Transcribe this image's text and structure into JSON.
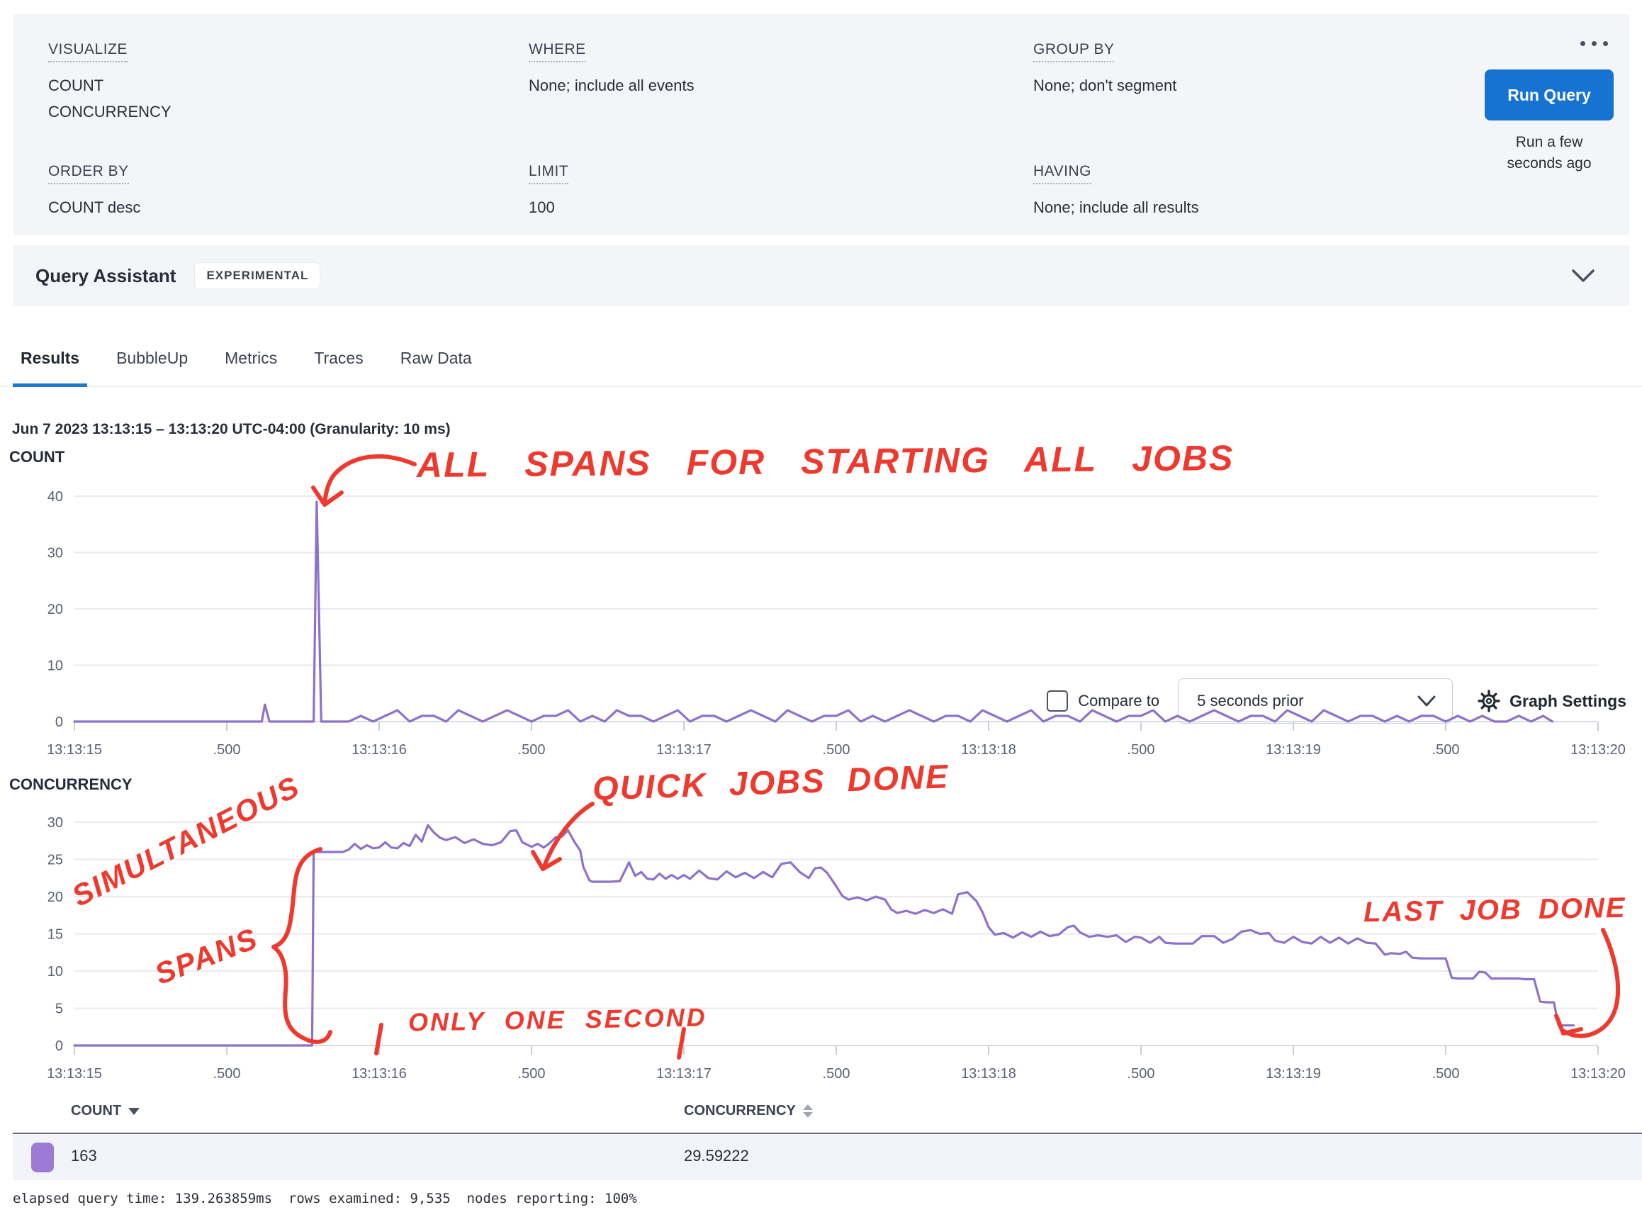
{
  "colors": {
    "accent_blue": "#1673d1",
    "series_purple": "#8d72c9",
    "annotation_red": "#ee392e",
    "tab_underline": "#1b79d2"
  },
  "query_builder": {
    "visualize": {
      "label": "VISUALIZE",
      "values": [
        "COUNT",
        "CONCURRENCY"
      ]
    },
    "where": {
      "label": "WHERE",
      "value": "None; include all events"
    },
    "group_by": {
      "label": "GROUP BY",
      "value": "None; don't segment"
    },
    "order_by": {
      "label": "ORDER BY",
      "value": "COUNT desc"
    },
    "limit": {
      "label": "LIMIT",
      "value": "100"
    },
    "having": {
      "label": "HAVING",
      "value": "None; include all results"
    },
    "run_query_label": "Run Query",
    "last_run_text": "Run a few seconds ago"
  },
  "query_assistant": {
    "title": "Query Assistant",
    "badge": "EXPERIMENTAL"
  },
  "tabs": {
    "items": [
      {
        "label": "Results",
        "active": true
      },
      {
        "label": "BubbleUp",
        "active": false
      },
      {
        "label": "Metrics",
        "active": false
      },
      {
        "label": "Traces",
        "active": false
      },
      {
        "label": "Raw Data",
        "active": false
      }
    ]
  },
  "toolbar": {
    "compare_checkbox_label": "Compare to",
    "compare_select_value": "5 seconds prior",
    "graph_settings_label": "Graph Settings"
  },
  "time_header": "Jun 7 2023 13:13:15 – 13:13:20 UTC-04:00 (Granularity: 10 ms)",
  "annotations": {
    "count_arrow_text": "ALL SPANS FOR STARTING ALL JOBS",
    "quick_jobs": "QUICK JOBS DONE",
    "simultaneous_line1": "SIMULTANEOUS",
    "simultaneous_line2": "SPANS",
    "only_one_second": "ONLY ONE SECOND",
    "last_job": "LAST JOB DONE"
  },
  "chart_data": [
    {
      "type": "line",
      "title": "COUNT",
      "color": "#8d72c9",
      "ylim": [
        0,
        40
      ],
      "yticks": [
        40,
        30,
        20,
        10,
        0
      ],
      "xlim": [
        0,
        5
      ],
      "grid": true,
      "xticks": [
        {
          "x": 0,
          "label": "13:13:15"
        },
        {
          "x": 0.5,
          "label": ".500"
        },
        {
          "x": 1,
          "label": "13:13:16"
        },
        {
          "x": 1.5,
          "label": ".500"
        },
        {
          "x": 2,
          "label": "13:13:17"
        },
        {
          "x": 2.5,
          "label": ".500"
        },
        {
          "x": 3,
          "label": "13:13:18"
        },
        {
          "x": 3.5,
          "label": ".500"
        },
        {
          "x": 4,
          "label": "13:13:19"
        },
        {
          "x": 4.5,
          "label": ".500"
        },
        {
          "x": 5,
          "label": "13:13:20"
        }
      ],
      "segments": [
        {
          "points": [
            [
              0,
              0
            ],
            [
              0.6,
              0
            ],
            [
              0.615,
              0
            ],
            [
              0.625,
              3
            ],
            [
              0.64,
              0
            ],
            [
              0.785,
              0
            ],
            [
              0.795,
              39
            ],
            [
              0.81,
              0
            ],
            [
              0.9,
              0
            ]
          ]
        },
        {
          "x0": 0.94,
          "dx": 0.04,
          "values": [
            1,
            0,
            1,
            2,
            0,
            1,
            1,
            0,
            2,
            1,
            0,
            1,
            2,
            1,
            0,
            1,
            1,
            2,
            0,
            1,
            0,
            2,
            1,
            1,
            0,
            1,
            2,
            0,
            1,
            1,
            0,
            1,
            2,
            1,
            0,
            2,
            1,
            0,
            1,
            1,
            2,
            0,
            1,
            0,
            1,
            2,
            1,
            0,
            1,
            1,
            0,
            2,
            1,
            0,
            1,
            2,
            0,
            1,
            1,
            0,
            2,
            1,
            0,
            1,
            1,
            2,
            0,
            1,
            0,
            1,
            2,
            1,
            0,
            1,
            1,
            0,
            2,
            1,
            0,
            2,
            1,
            0,
            1,
            1,
            0,
            1,
            0,
            1,
            1,
            0,
            1,
            0,
            1,
            0,
            0,
            1,
            0,
            1
          ]
        },
        {
          "points": [
            [
              4.85,
              0
            ]
          ]
        }
      ]
    },
    {
      "type": "line",
      "title": "CONCURRENCY",
      "color": "#8d72c9",
      "ylim": [
        0,
        30
      ],
      "yticks": [
        30,
        25,
        20,
        15,
        10,
        5,
        0
      ],
      "xlim": [
        0,
        5
      ],
      "grid": true,
      "xticks": [
        {
          "x": 0,
          "label": "13:13:15"
        },
        {
          "x": 0.5,
          "label": ".500"
        },
        {
          "x": 1,
          "label": "13:13:16"
        },
        {
          "x": 1.5,
          "label": ".500"
        },
        {
          "x": 2,
          "label": "13:13:17"
        },
        {
          "x": 2.5,
          "label": ".500"
        },
        {
          "x": 3,
          "label": "13:13:18"
        },
        {
          "x": 3.5,
          "label": ".500"
        },
        {
          "x": 4,
          "label": "13:13:19"
        },
        {
          "x": 4.5,
          "label": ".500"
        },
        {
          "x": 5,
          "label": "13:13:20"
        }
      ],
      "segments": [
        {
          "points": [
            [
              0,
              0
            ],
            [
              0.78,
              0
            ],
            [
              0.785,
              26
            ],
            [
              0.8,
              26
            ],
            [
              0.84,
              26
            ],
            [
              0.88,
              26
            ],
            [
              0.9,
              26.3
            ],
            [
              0.92,
              27.1
            ],
            [
              0.94,
              26.4
            ],
            [
              0.96,
              26.9
            ],
            [
              0.98,
              26.5
            ],
            [
              1,
              26.6
            ],
            [
              1.02,
              27.3
            ],
            [
              1.04,
              26.6
            ],
            [
              1.06,
              26.5
            ],
            [
              1.08,
              27.2
            ],
            [
              1.1,
              26.8
            ],
            [
              1.12,
              28.3
            ],
            [
              1.14,
              27.4
            ],
            [
              1.16,
              29.6
            ],
            [
              1.18,
              28.6
            ],
            [
              1.2,
              27.9
            ],
            [
              1.22,
              27.6
            ],
            [
              1.25,
              28
            ],
            [
              1.28,
              27.2
            ],
            [
              1.31,
              27.7
            ],
            [
              1.34,
              27.1
            ],
            [
              1.37,
              26.9
            ],
            [
              1.4,
              27.3
            ],
            [
              1.43,
              28.8
            ],
            [
              1.45,
              28.9
            ],
            [
              1.47,
              27.3
            ],
            [
              1.5,
              26.7
            ],
            [
              1.52,
              27.1
            ],
            [
              1.54,
              26.6
            ],
            [
              1.56,
              27.2
            ],
            [
              1.58,
              28
            ],
            [
              1.6,
              28.1
            ],
            [
              1.62,
              28.9
            ],
            [
              1.64,
              27.4
            ],
            [
              1.66,
              26.2
            ],
            [
              1.67,
              24
            ],
            [
              1.69,
              22.2
            ],
            [
              1.7,
              22
            ],
            [
              1.76,
              22
            ],
            [
              1.79,
              22.1
            ],
            [
              1.82,
              24.6
            ],
            [
              1.84,
              22.8
            ],
            [
              1.86,
              23.3
            ],
            [
              1.88,
              22.4
            ],
            [
              1.9,
              22.3
            ],
            [
              1.92,
              23.1
            ],
            [
              1.94,
              22.4
            ],
            [
              1.96,
              22.9
            ],
            [
              1.98,
              22.4
            ],
            [
              2,
              22.9
            ],
            [
              2.02,
              22.4
            ],
            [
              2.05,
              23.5
            ],
            [
              2.08,
              22.5
            ],
            [
              2.11,
              22.3
            ],
            [
              2.14,
              23.4
            ],
            [
              2.17,
              22.6
            ],
            [
              2.2,
              23.2
            ],
            [
              2.23,
              22.5
            ],
            [
              2.26,
              23.3
            ],
            [
              2.29,
              22.6
            ],
            [
              2.32,
              24.4
            ],
            [
              2.35,
              24.6
            ],
            [
              2.38,
              23.3
            ],
            [
              2.41,
              22.5
            ],
            [
              2.43,
              23.8
            ],
            [
              2.45,
              23.9
            ],
            [
              2.47,
              23.2
            ],
            [
              2.5,
              21.4
            ],
            [
              2.52,
              20.1
            ],
            [
              2.54,
              19.6
            ],
            [
              2.57,
              19.9
            ],
            [
              2.6,
              19.5
            ],
            [
              2.63,
              20
            ],
            [
              2.66,
              19.6
            ],
            [
              2.68,
              18.3
            ],
            [
              2.7,
              17.8
            ],
            [
              2.73,
              18.1
            ],
            [
              2.76,
              17.7
            ],
            [
              2.79,
              18.2
            ],
            [
              2.82,
              17.8
            ],
            [
              2.85,
              18.3
            ],
            [
              2.88,
              17.7
            ],
            [
              2.9,
              20.3
            ],
            [
              2.93,
              20.6
            ],
            [
              2.96,
              19.4
            ],
            [
              2.98,
              17.9
            ],
            [
              3,
              15.9
            ],
            [
              3.02,
              14.9
            ],
            [
              3.05,
              15.1
            ],
            [
              3.08,
              14.5
            ],
            [
              3.11,
              15.2
            ],
            [
              3.14,
              14.6
            ],
            [
              3.17,
              15.3
            ],
            [
              3.2,
              14.7
            ],
            [
              3.23,
              14.9
            ],
            [
              3.26,
              15.9
            ],
            [
              3.28,
              16.1
            ],
            [
              3.3,
              15.2
            ],
            [
              3.33,
              14.6
            ],
            [
              3.36,
              14.8
            ],
            [
              3.39,
              14.6
            ],
            [
              3.42,
              14.8
            ],
            [
              3.45,
              13.9
            ],
            [
              3.48,
              14.6
            ],
            [
              3.5,
              14.5
            ],
            [
              3.53,
              13.8
            ],
            [
              3.56,
              14.6
            ],
            [
              3.58,
              13.8
            ],
            [
              3.61,
              13.7
            ],
            [
              3.67,
              13.7
            ],
            [
              3.7,
              14.7
            ],
            [
              3.74,
              14.7
            ],
            [
              3.77,
              13.8
            ],
            [
              3.8,
              14.3
            ],
            [
              3.83,
              15.3
            ],
            [
              3.86,
              15.5
            ],
            [
              3.89,
              15
            ],
            [
              3.92,
              15.1
            ],
            [
              3.94,
              14.1
            ],
            [
              3.97,
              13.8
            ],
            [
              4,
              14.6
            ],
            [
              4.03,
              13.9
            ],
            [
              4.06,
              13.7
            ],
            [
              4.09,
              14.6
            ],
            [
              4.12,
              13.8
            ],
            [
              4.15,
              14.5
            ],
            [
              4.18,
              13.7
            ],
            [
              4.21,
              14.4
            ],
            [
              4.24,
              13.8
            ],
            [
              4.27,
              13.7
            ],
            [
              4.3,
              12.2
            ],
            [
              4.32,
              12.4
            ],
            [
              4.35,
              12.3
            ],
            [
              4.37,
              12.6
            ],
            [
              4.39,
              11.8
            ],
            [
              4.42,
              11.7
            ],
            [
              4.5,
              11.7
            ],
            [
              4.52,
              9.1
            ],
            [
              4.54,
              9
            ],
            [
              4.59,
              9
            ],
            [
              4.61,
              9.9
            ],
            [
              4.63,
              9.8
            ],
            [
              4.65,
              9
            ],
            [
              4.74,
              9
            ],
            [
              4.76,
              8.9
            ],
            [
              4.79,
              8.9
            ],
            [
              4.81,
              5.9
            ],
            [
              4.83,
              5.8
            ],
            [
              4.855,
              5.8
            ],
            [
              4.87,
              2.7
            ],
            [
              4.92,
              2.7
            ]
          ]
        }
      ]
    }
  ],
  "table": {
    "columns": [
      {
        "label": "COUNT",
        "sort": "desc"
      },
      {
        "label": "CONCURRENCY",
        "sort": "none"
      }
    ],
    "rows": [
      {
        "swatch_color": "#9d7bd4",
        "count": "163",
        "concurrency": "29.59222"
      }
    ]
  },
  "footer_stats": "elapsed query time: 139.263859ms  rows examined: 9,535  nodes reporting: 100%"
}
